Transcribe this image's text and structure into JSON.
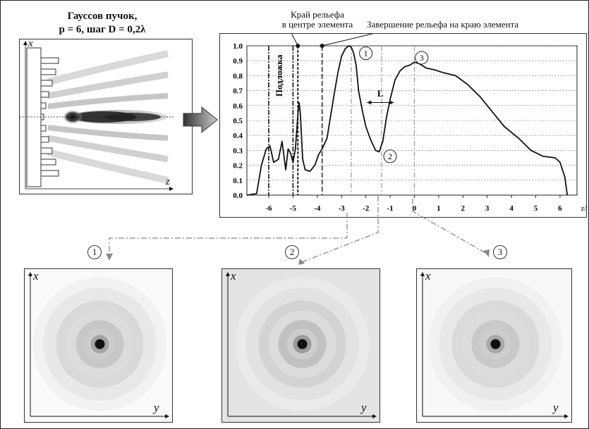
{
  "title_line1": "Гауссов пучок,",
  "title_line2": "p = 6, шаг D = 0,2λ",
  "sim_panel": {
    "axis_x": "x",
    "axis_z": "z"
  },
  "annotations": {
    "relief_edge_center_l1": "Край рельефа",
    "relief_edge_center_l2": "в центре элемента",
    "relief_end_edge": "Завершение рельефа на краю элемента",
    "substrate": "Подложка",
    "L_label": "L"
  },
  "markers": [
    "1",
    "2",
    "3"
  ],
  "intensity_panels": [
    {
      "marker": "1",
      "axis_x": "x",
      "axis_y": "y"
    },
    {
      "marker": "2",
      "axis_x": "x",
      "axis_y": "y"
    },
    {
      "marker": "3",
      "axis_x": "x",
      "axis_y": "y"
    }
  ],
  "chart_data": {
    "type": "line",
    "xlabel": "z/λ",
    "ylabel": "",
    "xlim": [
      -6.9,
      6.7
    ],
    "ylim": [
      0,
      1.0
    ],
    "x_ticks": [
      -6,
      -5,
      -4,
      -3,
      -2,
      -1,
      0,
      1,
      2,
      3,
      4,
      5,
      6
    ],
    "y_ticks": [
      0.0,
      0.1,
      0.2,
      0.3,
      0.4,
      0.5,
      0.6,
      0.7,
      0.8,
      0.9,
      1.0
    ],
    "y_tick_labels": [
      "0.0",
      "0.1",
      "0.2",
      "0.3",
      "0.4",
      "0.5",
      "0.6",
      "0.7",
      "0.8",
      "0.9",
      "1.0"
    ],
    "grid": true,
    "vertical_lines": [
      -6.0,
      -5.0,
      -4.8,
      -3.8,
      -2.6,
      -1.35,
      0.0
    ],
    "series": [
      {
        "x": [
          -6.9,
          -6.5,
          -6.3,
          -6.1,
          -5.95,
          -5.8,
          -5.6,
          -5.45,
          -5.3,
          -5.2,
          -5.1,
          -5.0,
          -4.9,
          -4.8,
          -4.75,
          -4.7,
          -4.6,
          -4.5,
          -4.3,
          -4.1,
          -3.95,
          -3.8,
          -3.6,
          -3.45,
          -3.3,
          -3.15,
          -3.0,
          -2.85,
          -2.7,
          -2.6,
          -2.5,
          -2.4,
          -2.3,
          -2.15,
          -2.0,
          -1.8,
          -1.6,
          -1.45,
          -1.3,
          -1.15,
          -1.0,
          -0.8,
          -0.6,
          -0.4,
          -0.2,
          0.0,
          0.2,
          0.5,
          0.8,
          1.2,
          1.7,
          2.2,
          2.7,
          3.2,
          3.7,
          4.3,
          4.8,
          5.3,
          5.8,
          6.0,
          6.2,
          6.3
        ],
        "y": [
          0.0,
          0.01,
          0.2,
          0.31,
          0.33,
          0.22,
          0.24,
          0.36,
          0.17,
          0.31,
          0.28,
          0.22,
          0.31,
          0.54,
          0.62,
          0.55,
          0.24,
          0.17,
          0.16,
          0.2,
          0.27,
          0.31,
          0.38,
          0.53,
          0.68,
          0.82,
          0.93,
          0.98,
          1.0,
          0.99,
          0.95,
          0.87,
          0.7,
          0.57,
          0.46,
          0.37,
          0.3,
          0.29,
          0.36,
          0.52,
          0.64,
          0.77,
          0.83,
          0.86,
          0.87,
          0.89,
          0.88,
          0.85,
          0.84,
          0.82,
          0.8,
          0.74,
          0.66,
          0.56,
          0.46,
          0.38,
          0.3,
          0.26,
          0.25,
          0.22,
          0.12,
          0.0
        ]
      }
    ]
  }
}
